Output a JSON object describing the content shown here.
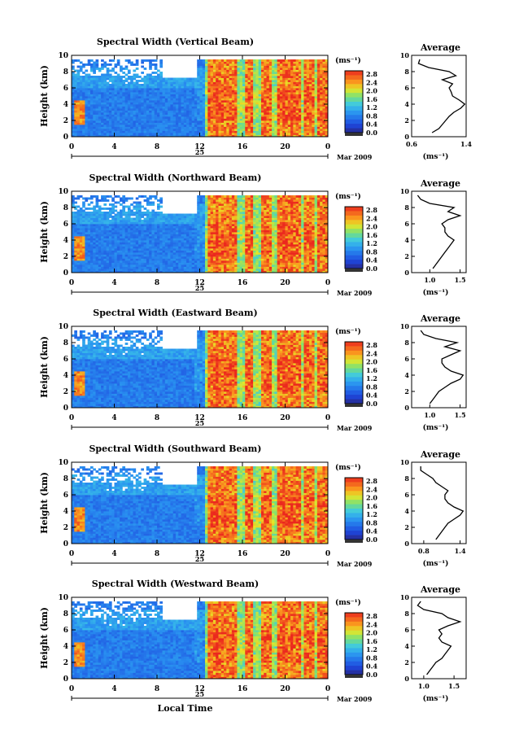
{
  "chart_data": [
    {
      "type": "heatmap",
      "title": "Spectral Width (Vertical Beam)",
      "ylabel": "Height (km)",
      "ylim": [
        0,
        10
      ],
      "x_ticks": [
        "0",
        "4",
        "8",
        "12",
        "16",
        "20",
        "0"
      ],
      "x_range_hours": [
        0,
        24
      ],
      "day_label": "25",
      "month_label": "Mar 2009",
      "colorbar": {
        "unit": "(ms⁻¹)",
        "range": [
          0,
          2.8
        ],
        "ticks": [
          "2.8",
          "2.4",
          "2.0",
          "1.6",
          "1.2",
          "0.8",
          "0.4",
          "0.0"
        ]
      },
      "profile": {
        "title": "Average",
        "xlabel": "(ms⁻¹)",
        "x_ticks": [
          "0.6",
          "1.4"
        ],
        "xlim": [
          0.6,
          1.4
        ],
        "ylim": [
          0,
          10
        ],
        "y_ticks": [
          "0",
          "2",
          "4",
          "6",
          "8",
          "10"
        ],
        "heights": [
          0.5,
          1,
          1.5,
          2,
          2.5,
          3,
          3.5,
          4,
          4.5,
          5,
          5.5,
          6,
          6.5,
          7,
          7.5,
          8,
          8.5,
          9,
          9.5
        ],
        "values": [
          0.9,
          1.0,
          1.05,
          1.1,
          1.15,
          1.22,
          1.32,
          1.38,
          1.3,
          1.2,
          1.18,
          1.15,
          1.2,
          1.05,
          1.25,
          1.15,
          0.85,
          0.7,
          0.72
        ]
      }
    },
    {
      "type": "heatmap",
      "title": "Spectral Width (Northward Beam)",
      "ylabel": "Height (km)",
      "ylim": [
        0,
        10
      ],
      "x_ticks": [
        "0",
        "4",
        "8",
        "12",
        "16",
        "20",
        "0"
      ],
      "x_range_hours": [
        0,
        24
      ],
      "day_label": "25",
      "month_label": "Mar 2009",
      "colorbar": {
        "unit": "(ms⁻¹)",
        "range": [
          0,
          2.8
        ],
        "ticks": [
          "2.8",
          "2.4",
          "2.0",
          "1.6",
          "1.2",
          "0.8",
          "0.4",
          "0.0"
        ]
      },
      "profile": {
        "title": "Average",
        "xlabel": "(ms⁻¹)",
        "x_ticks": [
          "1.0",
          "1.5"
        ],
        "xlim": [
          0.7,
          1.6
        ],
        "ylim": [
          0,
          10
        ],
        "y_ticks": [
          "0",
          "2",
          "4",
          "6",
          "8",
          "10"
        ],
        "heights": [
          0.5,
          1,
          1.5,
          2,
          2.5,
          3,
          3.5,
          4,
          4.5,
          5,
          5.5,
          6,
          6.5,
          7,
          7.5,
          8,
          8.5,
          9,
          9.5
        ],
        "values": [
          1.05,
          1.1,
          1.15,
          1.2,
          1.25,
          1.3,
          1.35,
          1.4,
          1.3,
          1.25,
          1.25,
          1.2,
          1.3,
          1.5,
          1.3,
          1.4,
          1.0,
          0.85,
          0.8
        ]
      }
    },
    {
      "type": "heatmap",
      "title": "Spectral Width (Eastward Beam)",
      "ylabel": "Height (km)",
      "ylim": [
        0,
        10
      ],
      "x_ticks": [
        "0",
        "4",
        "8",
        "12",
        "16",
        "20",
        "0"
      ],
      "x_range_hours": [
        0,
        24
      ],
      "day_label": "25",
      "month_label": "Mar 2009",
      "colorbar": {
        "unit": "(ms⁻¹)",
        "range": [
          0,
          2.8
        ],
        "ticks": [
          "2.8",
          "2.4",
          "2.0",
          "1.6",
          "1.2",
          "0.8",
          "0.4",
          "0.0"
        ]
      },
      "profile": {
        "title": "Average",
        "xlabel": "(ms⁻¹)",
        "x_ticks": [
          "1.0",
          "1.5"
        ],
        "xlim": [
          0.7,
          1.6
        ],
        "ylim": [
          0,
          10
        ],
        "y_ticks": [
          "0",
          "2",
          "4",
          "6",
          "8",
          "10"
        ],
        "heights": [
          0.5,
          1,
          1.5,
          2,
          2.5,
          3,
          3.5,
          4,
          4.5,
          5,
          5.5,
          6,
          6.5,
          7,
          7.5,
          8,
          8.5,
          9,
          9.5
        ],
        "values": [
          1.0,
          1.05,
          1.1,
          1.15,
          1.25,
          1.35,
          1.5,
          1.55,
          1.35,
          1.25,
          1.2,
          1.2,
          1.35,
          1.5,
          1.25,
          1.45,
          1.1,
          0.9,
          0.85
        ]
      }
    },
    {
      "type": "heatmap",
      "title": "Spectral Width (Southward Beam)",
      "ylabel": "Height (km)",
      "ylim": [
        0,
        10
      ],
      "x_ticks": [
        "0",
        "4",
        "8",
        "12",
        "16",
        "20",
        "0"
      ],
      "x_range_hours": [
        0,
        24
      ],
      "day_label": "25",
      "month_label": "Mar 2009",
      "colorbar": {
        "unit": "(ms⁻¹)",
        "range": [
          0,
          2.8
        ],
        "ticks": [
          "2.8",
          "2.4",
          "2.0",
          "1.6",
          "1.2",
          "0.8",
          "0.4",
          "0.0"
        ]
      },
      "profile": {
        "title": "Average",
        "xlabel": "(ms⁻¹)",
        "x_ticks": [
          "0.8",
          "1.4"
        ],
        "xlim": [
          0.6,
          1.5
        ],
        "ylim": [
          0,
          10
        ],
        "y_ticks": [
          "0",
          "2",
          "4",
          "6",
          "8",
          "10"
        ],
        "heights": [
          0.5,
          1,
          1.5,
          2,
          2.5,
          3,
          3.5,
          4,
          4.5,
          5,
          5.5,
          6,
          6.5,
          7,
          7.5,
          8,
          8.5,
          9,
          9.5
        ],
        "values": [
          1.0,
          1.05,
          1.1,
          1.15,
          1.2,
          1.3,
          1.4,
          1.45,
          1.3,
          1.2,
          1.15,
          1.15,
          1.2,
          1.1,
          1.0,
          0.95,
          0.85,
          0.75,
          0.75
        ]
      }
    },
    {
      "type": "heatmap",
      "title": "Spectral Width (Westward Beam)",
      "ylabel": "Height (km)",
      "xlabel": "Local Time",
      "ylim": [
        0,
        10
      ],
      "x_ticks": [
        "0",
        "4",
        "8",
        "12",
        "16",
        "20",
        "0"
      ],
      "x_range_hours": [
        0,
        24
      ],
      "day_label": "25",
      "month_label": "Mar 2009",
      "colorbar": {
        "unit": "(ms⁻¹)",
        "range": [
          0,
          2.8
        ],
        "ticks": [
          "2.8",
          "2.4",
          "2.0",
          "1.6",
          "1.2",
          "0.8",
          "0.4",
          "0.0"
        ]
      },
      "profile": {
        "title": "Average",
        "xlabel": "(ms⁻¹)",
        "x_ticks": [
          "1.0",
          "1.5"
        ],
        "xlim": [
          0.8,
          1.7
        ],
        "ylim": [
          0,
          10
        ],
        "y_ticks": [
          "0",
          "2",
          "4",
          "6",
          "8",
          "10"
        ],
        "heights": [
          0.5,
          1,
          1.5,
          2,
          2.5,
          3,
          3.5,
          4,
          4.5,
          5,
          5.5,
          6,
          6.5,
          7,
          7.5,
          8,
          8.5,
          9,
          9.5
        ],
        "values": [
          1.05,
          1.1,
          1.15,
          1.2,
          1.3,
          1.35,
          1.4,
          1.45,
          1.3,
          1.25,
          1.3,
          1.25,
          1.4,
          1.6,
          1.4,
          1.3,
          1.0,
          0.9,
          0.95
        ]
      }
    }
  ]
}
